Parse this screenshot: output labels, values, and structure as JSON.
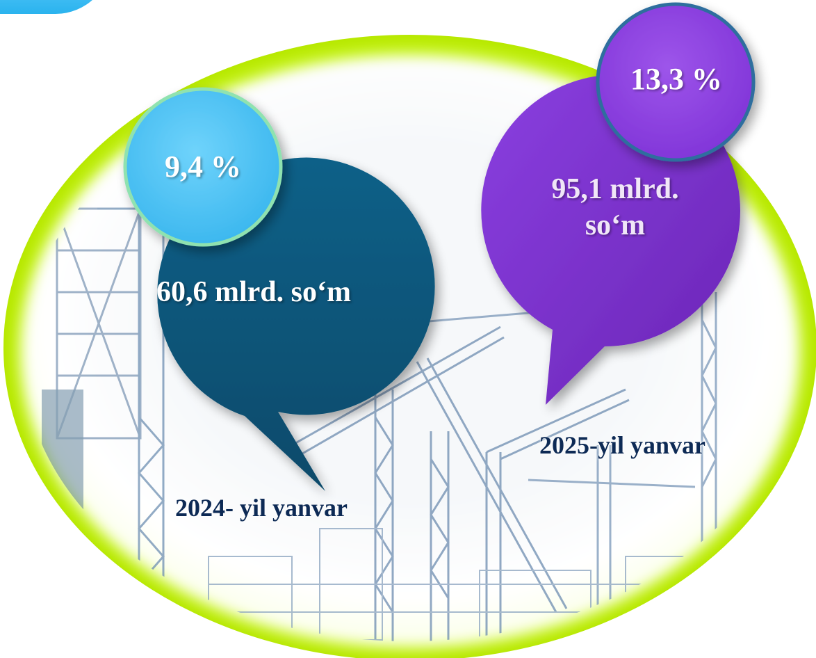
{
  "left_item": {
    "percent": "9,4 %",
    "amount": "60,6 mlrd. so‘m",
    "period": "2024- yil yanvar"
  },
  "right_item": {
    "percent": "13,3 %",
    "amount_line1": "95,1 mlrd.",
    "amount_line2": "so‘m",
    "period": "2025-yil yanvar"
  },
  "colors": {
    "frame_rim": "#c8f51a",
    "left_bubble": "#0a5478",
    "left_badge": "#4cc3f5",
    "right_bubble": "#7a2fc8",
    "right_badge": "#8e44e0",
    "caption_text": "#0d2a55"
  },
  "background_image": "construction-cranes-blueprint"
}
